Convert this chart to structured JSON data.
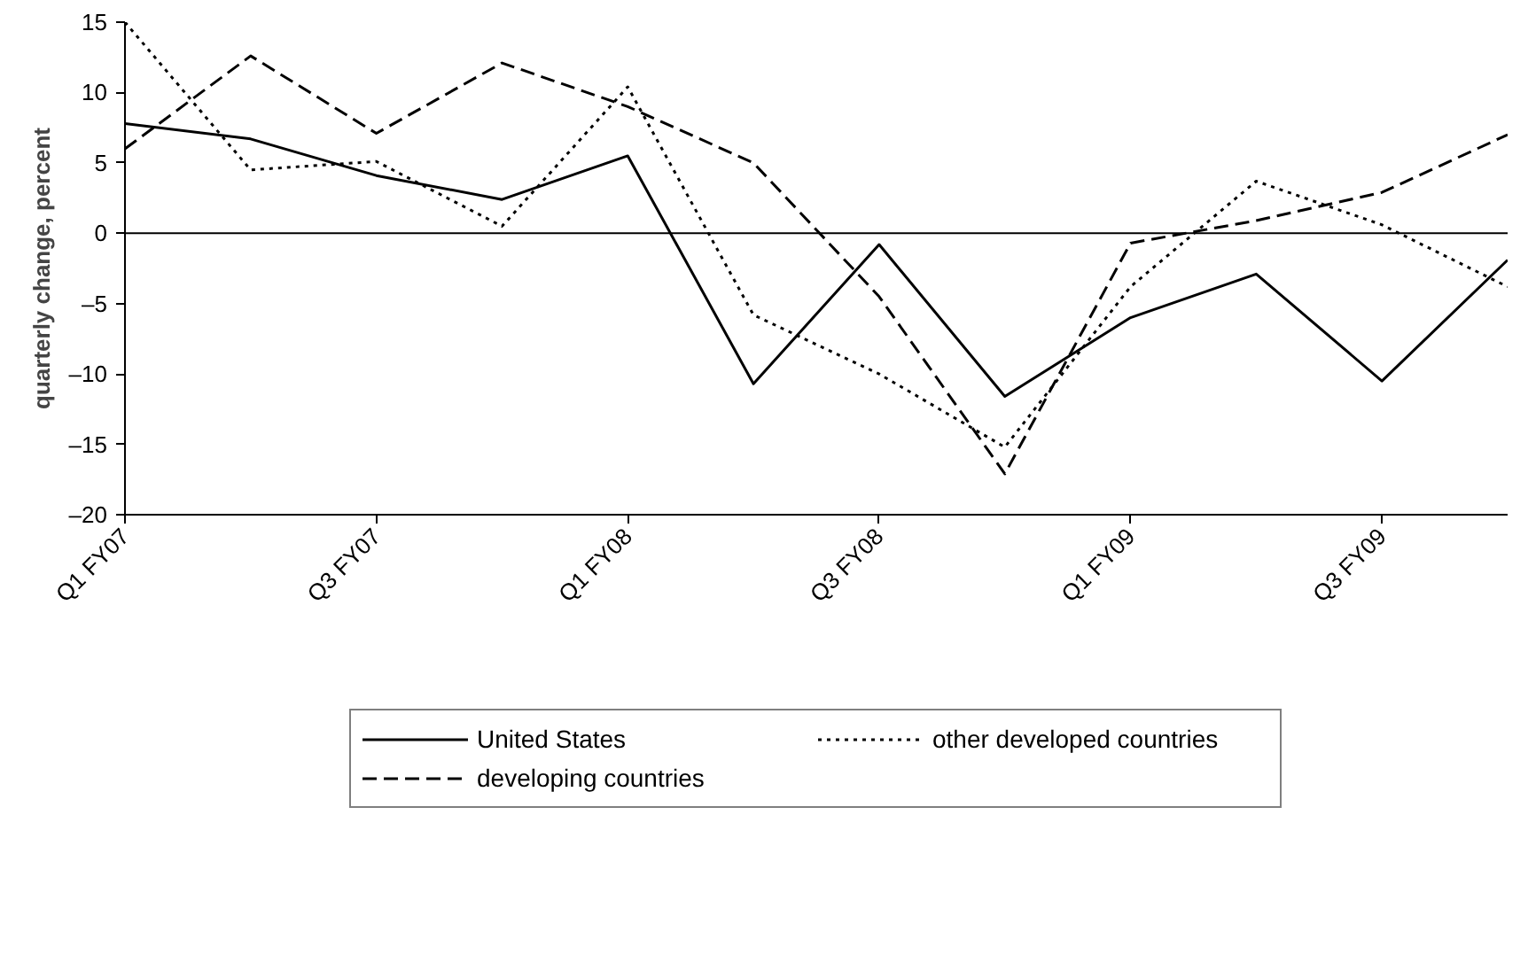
{
  "chart_data": {
    "type": "line",
    "ylabel": "quarterly change, percent",
    "categories": [
      "Q1 FY07",
      null,
      "Q3 FY07",
      null,
      "Q1 FY08",
      null,
      "Q3 FY08",
      null,
      "Q1 FY09",
      null,
      "Q3 FY09",
      null
    ],
    "series": [
      {
        "name": "United States",
        "color": "#000000",
        "line_style": "solid",
        "values": [
          7.8,
          6.7,
          4.1,
          2.4,
          5.5,
          -10.7,
          -0.8,
          -11.6,
          -6.0,
          -2.9,
          -10.5,
          -1.9
        ]
      },
      {
        "name": "other developed countries",
        "color": "#000000",
        "line_style": "dotted",
        "values": [
          15.0,
          4.5,
          5.1,
          0.5,
          10.4,
          -5.8,
          -10.0,
          -15.2,
          -3.8,
          3.7,
          0.6,
          -3.8
        ]
      },
      {
        "name": "developing countries",
        "color": "#000000",
        "line_style": "dashed",
        "values": [
          6.0,
          12.6,
          7.1,
          12.1,
          9.0,
          5.0,
          -4.5,
          -17.1,
          -0.7,
          0.9,
          2.9,
          7.0
        ]
      }
    ],
    "ylim": [
      -20,
      15
    ],
    "yticks": [
      {
        "value": -20,
        "label": "–20"
      },
      {
        "value": -15,
        "label": "–15"
      },
      {
        "value": -10,
        "label": "–10"
      },
      {
        "value": -5,
        "label": "–5"
      },
      0,
      5,
      10,
      15
    ],
    "ref_lines": [
      {
        "axis": "y",
        "value": 0,
        "color": "#000000"
      }
    ],
    "grid": false,
    "legend": "bottom",
    "marker": "none"
  }
}
